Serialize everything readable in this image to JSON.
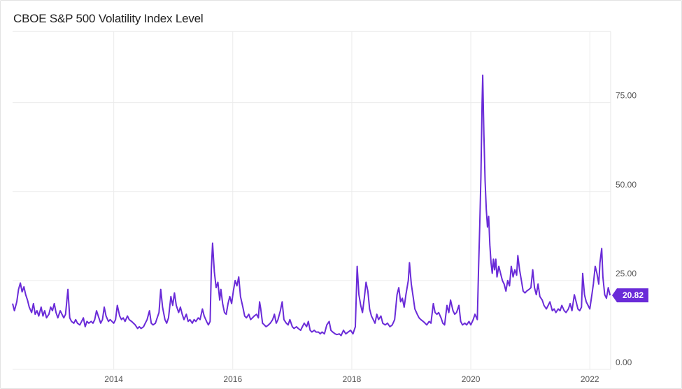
{
  "chart_data": {
    "type": "line",
    "title": "CBOE S&P 500 Volatility Index Level",
    "series": [
      {
        "color": "#6a2bd8",
        "last_value_label": "20.82"
      }
    ],
    "ylim": [
      0,
      95
    ],
    "y_ticks": [
      0,
      25,
      50,
      75
    ],
    "y_tick_labels": [
      "0.00",
      "25.00",
      "50.00",
      "75.00"
    ],
    "x_range": [
      2012.3,
      2022.35
    ],
    "x_ticks": [
      2014,
      2016,
      2018,
      2020,
      2022
    ],
    "x_tick_labels": [
      "2014",
      "2016",
      "2018",
      "2020",
      "2022"
    ],
    "grid": true,
    "points": [
      [
        2012.3,
        18.5
      ],
      [
        2012.33,
        16.5
      ],
      [
        2012.37,
        19
      ],
      [
        2012.4,
        22.5
      ],
      [
        2012.43,
        24.3
      ],
      [
        2012.46,
        21.8
      ],
      [
        2012.49,
        23.2
      ],
      [
        2012.52,
        21
      ],
      [
        2012.55,
        19.5
      ],
      [
        2012.58,
        17.5
      ],
      [
        2012.62,
        16
      ],
      [
        2012.65,
        18.5
      ],
      [
        2012.68,
        15.5
      ],
      [
        2012.71,
        16.5
      ],
      [
        2012.74,
        15
      ],
      [
        2012.78,
        17.5
      ],
      [
        2012.81,
        15
      ],
      [
        2012.84,
        16.5
      ],
      [
        2012.87,
        14.5
      ],
      [
        2012.91,
        15.5
      ],
      [
        2012.94,
        17.5
      ],
      [
        2012.97,
        16.5
      ],
      [
        2013.0,
        18.5
      ],
      [
        2013.03,
        16
      ],
      [
        2013.06,
        14.5
      ],
      [
        2013.1,
        16.5
      ],
      [
        2013.13,
        15.5
      ],
      [
        2013.16,
        14.5
      ],
      [
        2013.19,
        15.5
      ],
      [
        2013.23,
        22.5
      ],
      [
        2013.26,
        14.5
      ],
      [
        2013.29,
        13.5
      ],
      [
        2013.33,
        13
      ],
      [
        2013.36,
        14
      ],
      [
        2013.39,
        13
      ],
      [
        2013.43,
        12.5
      ],
      [
        2013.46,
        13.5
      ],
      [
        2013.49,
        14.5
      ],
      [
        2013.52,
        12
      ],
      [
        2013.55,
        13.5
      ],
      [
        2013.58,
        13
      ],
      [
        2013.62,
        13.5
      ],
      [
        2013.65,
        13
      ],
      [
        2013.68,
        14
      ],
      [
        2013.71,
        16.5
      ],
      [
        2013.74,
        15
      ],
      [
        2013.78,
        13
      ],
      [
        2013.81,
        14
      ],
      [
        2013.84,
        17.5
      ],
      [
        2013.87,
        15
      ],
      [
        2013.91,
        13.5
      ],
      [
        2013.94,
        14
      ],
      [
        2013.97,
        13.5
      ],
      [
        2014.0,
        13
      ],
      [
        2014.03,
        14
      ],
      [
        2014.06,
        18
      ],
      [
        2014.1,
        15
      ],
      [
        2014.13,
        14
      ],
      [
        2014.16,
        14.5
      ],
      [
        2014.19,
        13.5
      ],
      [
        2014.23,
        15
      ],
      [
        2014.26,
        14
      ],
      [
        2014.3,
        13.5
      ],
      [
        2014.33,
        13
      ],
      [
        2014.36,
        12.5
      ],
      [
        2014.4,
        11.5
      ],
      [
        2014.43,
        12
      ],
      [
        2014.46,
        11.5
      ],
      [
        2014.5,
        12
      ],
      [
        2014.53,
        13
      ],
      [
        2014.56,
        14
      ],
      [
        2014.6,
        16.5
      ],
      [
        2014.63,
        13
      ],
      [
        2014.66,
        12.5
      ],
      [
        2014.7,
        13
      ],
      [
        2014.73,
        14.5
      ],
      [
        2014.76,
        16
      ],
      [
        2014.79,
        22.5
      ],
      [
        2014.82,
        17.5
      ],
      [
        2014.86,
        14
      ],
      [
        2014.89,
        13
      ],
      [
        2014.92,
        14.5
      ],
      [
        2014.96,
        20.5
      ],
      [
        2014.99,
        18
      ],
      [
        2015.02,
        21.5
      ],
      [
        2015.05,
        18
      ],
      [
        2015.09,
        16
      ],
      [
        2015.12,
        17.5
      ],
      [
        2015.15,
        15.5
      ],
      [
        2015.18,
        14
      ],
      [
        2015.22,
        15.5
      ],
      [
        2015.25,
        13.5
      ],
      [
        2015.28,
        14
      ],
      [
        2015.32,
        13
      ],
      [
        2015.35,
        14
      ],
      [
        2015.38,
        13.5
      ],
      [
        2015.42,
        14.5
      ],
      [
        2015.45,
        14
      ],
      [
        2015.49,
        17
      ],
      [
        2015.52,
        15
      ],
      [
        2015.56,
        13.5
      ],
      [
        2015.59,
        12.5
      ],
      [
        2015.62,
        13.5
      ],
      [
        2015.64,
        28
      ],
      [
        2015.66,
        35.5
      ],
      [
        2015.69,
        27.5
      ],
      [
        2015.72,
        23
      ],
      [
        2015.75,
        24.5
      ],
      [
        2015.78,
        19.5
      ],
      [
        2015.8,
        22.5
      ],
      [
        2015.83,
        18.5
      ],
      [
        2015.86,
        16
      ],
      [
        2015.89,
        15.5
      ],
      [
        2015.92,
        18.5
      ],
      [
        2015.95,
        20.5
      ],
      [
        2015.98,
        18.5
      ],
      [
        2016.01,
        22
      ],
      [
        2016.04,
        25
      ],
      [
        2016.07,
        23.5
      ],
      [
        2016.1,
        26
      ],
      [
        2016.13,
        20.5
      ],
      [
        2016.17,
        17.5
      ],
      [
        2016.2,
        15
      ],
      [
        2016.23,
        14.5
      ],
      [
        2016.27,
        15.5
      ],
      [
        2016.3,
        14
      ],
      [
        2016.33,
        14.5
      ],
      [
        2016.36,
        15
      ],
      [
        2016.4,
        15.5
      ],
      [
        2016.43,
        14.5
      ],
      [
        2016.45,
        19
      ],
      [
        2016.47,
        17
      ],
      [
        2016.5,
        13
      ],
      [
        2016.53,
        12.5
      ],
      [
        2016.56,
        12
      ],
      [
        2016.6,
        12.5
      ],
      [
        2016.63,
        13
      ],
      [
        2016.67,
        14
      ],
      [
        2016.7,
        15.5
      ],
      [
        2016.73,
        13
      ],
      [
        2016.76,
        14
      ],
      [
        2016.8,
        16.5
      ],
      [
        2016.83,
        19
      ],
      [
        2016.86,
        14
      ],
      [
        2016.9,
        13
      ],
      [
        2016.93,
        12.5
      ],
      [
        2016.96,
        14
      ],
      [
        2017.0,
        12
      ],
      [
        2017.03,
        11.5
      ],
      [
        2017.07,
        12
      ],
      [
        2017.1,
        11.5
      ],
      [
        2017.14,
        11
      ],
      [
        2017.17,
        12
      ],
      [
        2017.2,
        13
      ],
      [
        2017.24,
        12
      ],
      [
        2017.27,
        13.5
      ],
      [
        2017.3,
        11
      ],
      [
        2017.33,
        10.5
      ],
      [
        2017.37,
        11
      ],
      [
        2017.4,
        10.5
      ],
      [
        2017.44,
        10.5
      ],
      [
        2017.47,
        10
      ],
      [
        2017.5,
        10.5
      ],
      [
        2017.54,
        10
      ],
      [
        2017.58,
        12.5
      ],
      [
        2017.62,
        13.5
      ],
      [
        2017.65,
        11
      ],
      [
        2017.68,
        10.5
      ],
      [
        2017.72,
        10
      ],
      [
        2017.75,
        9.8
      ],
      [
        2017.79,
        10
      ],
      [
        2017.82,
        9.5
      ],
      [
        2017.86,
        11
      ],
      [
        2017.9,
        10
      ],
      [
        2017.94,
        10.5
      ],
      [
        2017.98,
        11
      ],
      [
        2018.02,
        10
      ],
      [
        2018.06,
        12
      ],
      [
        2018.09,
        29
      ],
      [
        2018.12,
        21
      ],
      [
        2018.15,
        18
      ],
      [
        2018.18,
        16
      ],
      [
        2018.21,
        20
      ],
      [
        2018.24,
        24.5
      ],
      [
        2018.27,
        22
      ],
      [
        2018.3,
        17
      ],
      [
        2018.33,
        15
      ],
      [
        2018.36,
        14
      ],
      [
        2018.39,
        13
      ],
      [
        2018.42,
        15.5
      ],
      [
        2018.45,
        14
      ],
      [
        2018.49,
        15
      ],
      [
        2018.52,
        13
      ],
      [
        2018.56,
        12.5
      ],
      [
        2018.6,
        13
      ],
      [
        2018.64,
        12
      ],
      [
        2018.68,
        12.5
      ],
      [
        2018.72,
        14
      ],
      [
        2018.76,
        21
      ],
      [
        2018.79,
        23
      ],
      [
        2018.82,
        19
      ],
      [
        2018.85,
        20
      ],
      [
        2018.88,
        17.5
      ],
      [
        2018.91,
        21
      ],
      [
        2018.95,
        25
      ],
      [
        2018.97,
        30
      ],
      [
        2019.0,
        24
      ],
      [
        2019.03,
        20.5
      ],
      [
        2019.06,
        17
      ],
      [
        2019.1,
        15.5
      ],
      [
        2019.13,
        14.5
      ],
      [
        2019.16,
        14
      ],
      [
        2019.2,
        13.5
      ],
      [
        2019.23,
        13
      ],
      [
        2019.26,
        12.5
      ],
      [
        2019.3,
        13.5
      ],
      [
        2019.33,
        13
      ],
      [
        2019.37,
        18.5
      ],
      [
        2019.4,
        16
      ],
      [
        2019.43,
        15.5
      ],
      [
        2019.46,
        16
      ],
      [
        2019.5,
        14.5
      ],
      [
        2019.53,
        13
      ],
      [
        2019.56,
        12.5
      ],
      [
        2019.6,
        18
      ],
      [
        2019.63,
        16
      ],
      [
        2019.66,
        19.5
      ],
      [
        2019.7,
        16.5
      ],
      [
        2019.73,
        15.5
      ],
      [
        2019.76,
        16
      ],
      [
        2019.8,
        18
      ],
      [
        2019.83,
        13.5
      ],
      [
        2019.86,
        12.5
      ],
      [
        2019.9,
        13
      ],
      [
        2019.93,
        12.5
      ],
      [
        2019.97,
        13.5
      ],
      [
        2020.0,
        12.5
      ],
      [
        2020.04,
        14
      ],
      [
        2020.07,
        15.5
      ],
      [
        2020.11,
        14
      ],
      [
        2020.13,
        28
      ],
      [
        2020.15,
        40
      ],
      [
        2020.17,
        54
      ],
      [
        2020.19,
        75
      ],
      [
        2020.2,
        82.7
      ],
      [
        2020.22,
        66
      ],
      [
        2020.24,
        53
      ],
      [
        2020.26,
        45
      ],
      [
        2020.28,
        40
      ],
      [
        2020.3,
        43
      ],
      [
        2020.32,
        35
      ],
      [
        2020.34,
        30
      ],
      [
        2020.36,
        27
      ],
      [
        2020.38,
        31
      ],
      [
        2020.4,
        28
      ],
      [
        2020.42,
        31
      ],
      [
        2020.44,
        26
      ],
      [
        2020.47,
        29
      ],
      [
        2020.5,
        27
      ],
      [
        2020.53,
        25
      ],
      [
        2020.56,
        24
      ],
      [
        2020.59,
        22
      ],
      [
        2020.62,
        25
      ],
      [
        2020.65,
        23.5
      ],
      [
        2020.68,
        29
      ],
      [
        2020.71,
        26
      ],
      [
        2020.74,
        28
      ],
      [
        2020.77,
        26.5
      ],
      [
        2020.79,
        32
      ],
      [
        2020.82,
        28
      ],
      [
        2020.85,
        25
      ],
      [
        2020.88,
        22
      ],
      [
        2020.91,
        21.5
      ],
      [
        2020.94,
        22
      ],
      [
        2020.98,
        22.5
      ],
      [
        2021.01,
        23
      ],
      [
        2021.04,
        28
      ],
      [
        2021.07,
        23
      ],
      [
        2021.1,
        21
      ],
      [
        2021.13,
        24
      ],
      [
        2021.16,
        20.5
      ],
      [
        2021.2,
        19.5
      ],
      [
        2021.23,
        18
      ],
      [
        2021.27,
        17
      ],
      [
        2021.3,
        18
      ],
      [
        2021.33,
        19
      ],
      [
        2021.37,
        16.5
      ],
      [
        2021.4,
        17
      ],
      [
        2021.43,
        16
      ],
      [
        2021.47,
        17
      ],
      [
        2021.5,
        16.5
      ],
      [
        2021.53,
        18
      ],
      [
        2021.57,
        16.5
      ],
      [
        2021.6,
        16
      ],
      [
        2021.64,
        17
      ],
      [
        2021.67,
        18.5
      ],
      [
        2021.7,
        16.5
      ],
      [
        2021.74,
        21
      ],
      [
        2021.77,
        19
      ],
      [
        2021.8,
        17
      ],
      [
        2021.83,
        16.5
      ],
      [
        2021.86,
        17.5
      ],
      [
        2021.88,
        27
      ],
      [
        2021.91,
        21
      ],
      [
        2021.94,
        19
      ],
      [
        2021.97,
        18
      ],
      [
        2022.0,
        17
      ],
      [
        2022.03,
        20.5
      ],
      [
        2022.06,
        24
      ],
      [
        2022.09,
        29
      ],
      [
        2022.12,
        27
      ],
      [
        2022.15,
        24
      ],
      [
        2022.17,
        30
      ],
      [
        2022.2,
        34
      ],
      [
        2022.22,
        26
      ],
      [
        2022.25,
        21
      ],
      [
        2022.28,
        20
      ],
      [
        2022.31,
        23
      ],
      [
        2022.34,
        20.82
      ]
    ]
  }
}
